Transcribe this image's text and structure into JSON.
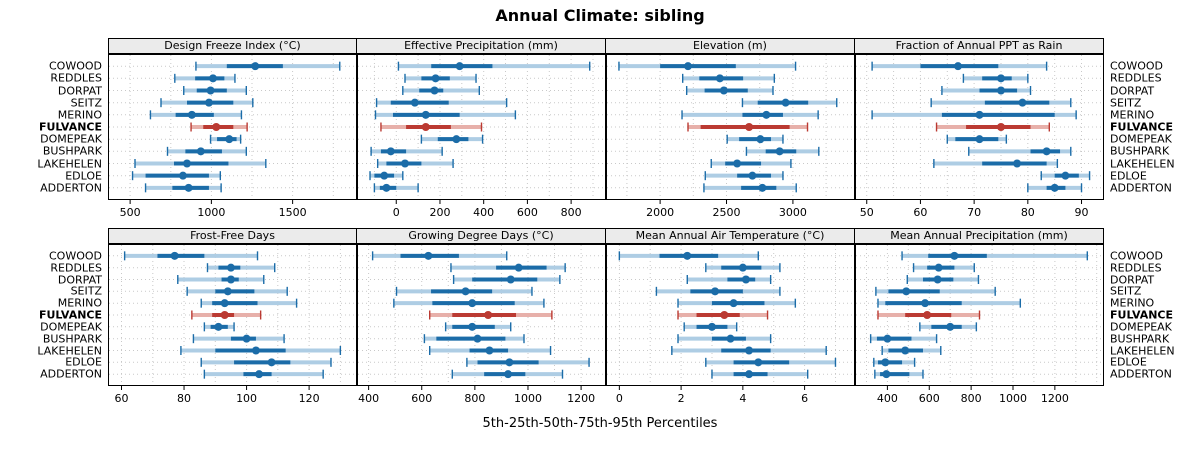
{
  "title": "Annual Climate: sibling",
  "caption": "5th-25th-50th-75th-95th Percentiles",
  "stations": [
    "COWOOD",
    "REDDLES",
    "DORPAT",
    "SEITZ",
    "MERINO",
    "FULVANCE",
    "DOMEPEAK",
    "BUSHPARK",
    "LAKEHELEN",
    "EDLOE",
    "ADDERTON"
  ],
  "highlight_station": "FULVANCE",
  "colors": {
    "blue_dark": "#1b6ca8",
    "blue_pale": "#aecde4",
    "red_dark": "#bb3a32",
    "red_pale": "#e7b0aa",
    "grid": "#c9c9c9",
    "strip_bg": "#ebebeb",
    "border": "#000000"
  },
  "chart_data": [
    {
      "type": "percentile-dotplot",
      "title": "Design Freeze Index (°C)",
      "percentiles": [
        5,
        25,
        50,
        75,
        95
      ],
      "xlim": [
        370,
        1890
      ],
      "ticks": [
        500,
        1000,
        1500
      ],
      "values": [
        [
          905,
          1095,
          1270,
          1440,
          1790
        ],
        [
          775,
          900,
          1010,
          1080,
          1145
        ],
        [
          830,
          910,
          995,
          1095,
          1215
        ],
        [
          690,
          850,
          985,
          1135,
          1255
        ],
        [
          625,
          780,
          880,
          1015,
          1185
        ],
        [
          875,
          950,
          1030,
          1135,
          1220
        ],
        [
          995,
          1035,
          1110,
          1155,
          1180
        ],
        [
          730,
          840,
          935,
          1065,
          1215
        ],
        [
          530,
          770,
          850,
          1105,
          1335
        ],
        [
          515,
          595,
          825,
          985,
          1055
        ],
        [
          595,
          760,
          860,
          985,
          1060
        ]
      ]
    },
    {
      "type": "percentile-dotplot",
      "title": "Effective Precipitation (mm)",
      "percentiles": [
        5,
        25,
        50,
        75,
        95
      ],
      "xlim": [
        -175,
        955
      ],
      "ticks": [
        0,
        200,
        400,
        600,
        800
      ],
      "values": [
        [
          10,
          160,
          290,
          440,
          885
        ],
        [
          40,
          115,
          180,
          245,
          365
        ],
        [
          30,
          105,
          175,
          215,
          380
        ],
        [
          -90,
          -25,
          85,
          240,
          505
        ],
        [
          -95,
          -15,
          135,
          290,
          545
        ],
        [
          -70,
          45,
          135,
          250,
          390
        ],
        [
          115,
          190,
          275,
          330,
          395
        ],
        [
          -115,
          -70,
          -25,
          45,
          210
        ],
        [
          -85,
          -45,
          40,
          115,
          260
        ],
        [
          -120,
          -100,
          -55,
          -10,
          30
        ],
        [
          -100,
          -75,
          -45,
          0,
          100
        ]
      ]
    },
    {
      "type": "percentile-dotplot",
      "title": "Elevation (m)",
      "percentiles": [
        5,
        25,
        50,
        75,
        95
      ],
      "xlim": [
        1600,
        3460
      ],
      "ticks": [
        2000,
        2500,
        3000
      ],
      "values": [
        [
          1690,
          2000,
          2210,
          2570,
          3020
        ],
        [
          2170,
          2295,
          2450,
          2625,
          2860
        ],
        [
          2200,
          2335,
          2480,
          2660,
          2850
        ],
        [
          2620,
          2735,
          2945,
          3115,
          3330
        ],
        [
          2165,
          2620,
          2800,
          2925,
          3190
        ],
        [
          2210,
          2305,
          2670,
          2975,
          3110
        ],
        [
          2505,
          2595,
          2755,
          2835,
          2925
        ],
        [
          2650,
          2795,
          2900,
          3025,
          3195
        ],
        [
          2385,
          2490,
          2580,
          2760,
          2985
        ],
        [
          2340,
          2580,
          2695,
          2835,
          2925
        ],
        [
          2330,
          2610,
          2770,
          2875,
          3025
        ]
      ]
    },
    {
      "type": "percentile-dotplot",
      "title": "Fraction of Annual PPT as Rain",
      "percentiles": [
        5,
        25,
        50,
        75,
        95
      ],
      "xlim": [
        48,
        94
      ],
      "ticks": [
        50,
        60,
        70,
        80,
        90
      ],
      "values": [
        [
          51,
          60,
          67,
          74.5,
          83.5
        ],
        [
          68,
          71.5,
          75,
          77,
          80
        ],
        [
          64,
          71,
          75,
          78,
          80.5
        ],
        [
          62,
          72,
          79,
          84,
          88
        ],
        [
          51,
          64,
          71,
          85,
          89
        ],
        [
          63,
          68.5,
          75,
          80.5,
          84
        ],
        [
          65,
          66.5,
          71,
          74.5,
          76
        ],
        [
          69,
          80.5,
          83.5,
          86,
          88
        ],
        [
          62.5,
          71.5,
          78,
          83.5,
          85.5
        ],
        [
          82.5,
          85,
          87,
          89.5,
          91.5
        ],
        [
          80,
          83.5,
          85,
          87,
          90
        ]
      ]
    },
    {
      "type": "percentile-dotplot",
      "title": "Frost-Free Days",
      "percentiles": [
        5,
        25,
        50,
        75,
        95
      ],
      "xlim": [
        56,
        135
      ],
      "ticks": [
        60,
        80,
        100,
        120
      ],
      "values": [
        [
          61,
          71.5,
          77,
          86.5,
          103.5
        ],
        [
          87.5,
          91,
          95,
          98,
          109
        ],
        [
          78,
          92,
          95,
          97.5,
          105.5
        ],
        [
          81,
          90,
          94,
          102.5,
          113
        ],
        [
          85.5,
          89,
          93,
          103.5,
          116
        ],
        [
          82.5,
          89,
          93,
          96,
          104.5
        ],
        [
          86.5,
          88.5,
          91,
          94,
          96
        ],
        [
          83,
          95,
          100,
          103,
          112
        ],
        [
          79,
          90,
          103,
          112.5,
          130
        ],
        [
          85.5,
          96,
          108,
          114,
          127
        ],
        [
          86.5,
          99,
          104,
          108,
          124.5
        ]
      ]
    },
    {
      "type": "percentile-dotplot",
      "title": "Growing Degree Days (°C)",
      "percentiles": [
        5,
        25,
        50,
        75,
        95
      ],
      "xlim": [
        360,
        1290
      ],
      "ticks": [
        400,
        600,
        800,
        1000,
        1200
      ],
      "values": [
        [
          415,
          520,
          625,
          740,
          920
        ],
        [
          710,
          880,
          965,
          1070,
          1140
        ],
        [
          720,
          790,
          935,
          1035,
          1120
        ],
        [
          505,
          635,
          765,
          865,
          1015
        ],
        [
          495,
          640,
          790,
          950,
          1060
        ],
        [
          630,
          715,
          850,
          955,
          1090
        ],
        [
          690,
          715,
          790,
          875,
          935
        ],
        [
          610,
          655,
          810,
          915,
          985
        ],
        [
          630,
          780,
          855,
          925,
          1085
        ],
        [
          770,
          810,
          930,
          1040,
          1230
        ],
        [
          715,
          835,
          925,
          990,
          1130
        ]
      ]
    },
    {
      "type": "percentile-dotplot",
      "title": "Mean Annual Air Temperature (°C)",
      "percentiles": [
        5,
        25,
        50,
        75,
        95
      ],
      "xlim": [
        -0.4,
        7.6
      ],
      "ticks": [
        0,
        2,
        4,
        6
      ],
      "values": [
        [
          0,
          1.3,
          2.2,
          3.2,
          4.5
        ],
        [
          2.8,
          3.3,
          4.0,
          4.6,
          5.2
        ],
        [
          2.2,
          3.5,
          4.1,
          4.4,
          4.9
        ],
        [
          1.2,
          2.3,
          3.1,
          4.0,
          5.2
        ],
        [
          1.9,
          3.0,
          3.7,
          4.7,
          5.7
        ],
        [
          1.9,
          2.5,
          3.4,
          3.9,
          4.8
        ],
        [
          2.1,
          2.5,
          3.0,
          3.5,
          3.8
        ],
        [
          1.9,
          3.0,
          3.6,
          4.1,
          4.9
        ],
        [
          1.7,
          3.3,
          4.2,
          4.9,
          6.7
        ],
        [
          2.8,
          3.7,
          4.5,
          5.5,
          7.0
        ],
        [
          3.0,
          3.7,
          4.2,
          4.8,
          6.1
        ]
      ]
    },
    {
      "type": "percentile-dotplot",
      "title": "Mean Annual Precipitation (mm)",
      "percentiles": [
        5,
        25,
        50,
        75,
        95
      ],
      "xlim": [
        250,
        1430
      ],
      "ticks": [
        400,
        600,
        800,
        1000,
        1200
      ],
      "values": [
        [
          470,
          595,
          720,
          875,
          1355
        ],
        [
          525,
          590,
          645,
          720,
          815
        ],
        [
          495,
          570,
          640,
          715,
          835
        ],
        [
          345,
          405,
          490,
          650,
          915
        ],
        [
          355,
          390,
          580,
          755,
          1035
        ],
        [
          355,
          485,
          590,
          705,
          840
        ],
        [
          555,
          610,
          700,
          755,
          825
        ],
        [
          320,
          350,
          400,
          515,
          635
        ],
        [
          375,
          405,
          485,
          570,
          655
        ],
        [
          335,
          355,
          390,
          470,
          530
        ],
        [
          340,
          365,
          395,
          505,
          570
        ]
      ]
    }
  ],
  "layout_rows": [
    [
      0,
      1,
      2,
      3
    ],
    [
      4,
      5,
      6,
      7
    ]
  ]
}
